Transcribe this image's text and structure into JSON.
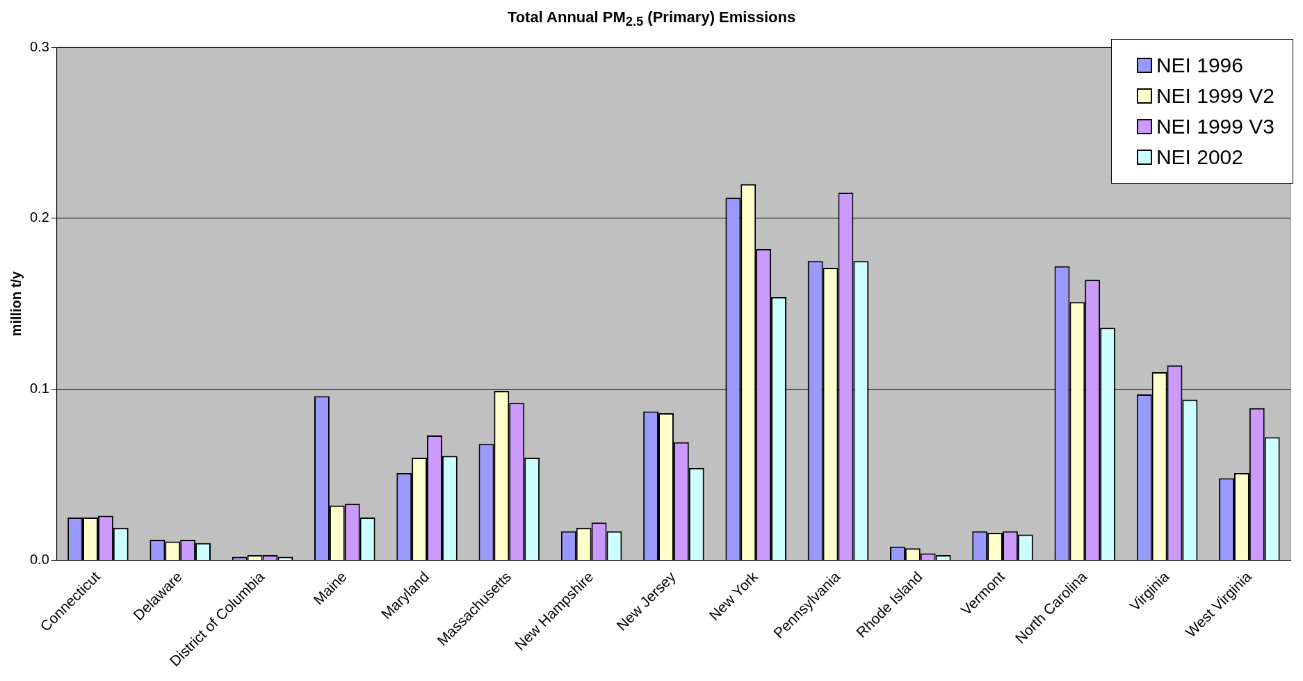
{
  "chart_data": {
    "type": "bar",
    "title": "Total Annual PM$_{2.5}$ (Primary) Emissions",
    "ylabel": "million t/y",
    "categories": [
      "Connecticut",
      "Delaware",
      "District of Columbia",
      "Maine",
      "Maryland",
      "Massachusetts",
      "New Hampshire",
      "New Jersey",
      "New York",
      "Pennsylvania",
      "Rhode Island",
      "Vermont",
      "North Carolina",
      "Virginia",
      "West Virginia"
    ],
    "series": [
      {
        "name": "NEI 1996",
        "color": "#9999ff",
        "values": [
          0.025,
          0.012,
          0.002,
          0.096,
          0.051,
          0.068,
          0.017,
          0.087,
          0.212,
          0.175,
          0.008,
          0.017,
          0.172,
          0.097,
          0.048
        ]
      },
      {
        "name": "NEI 1999 V2",
        "color": "#ffffcc",
        "values": [
          0.025,
          0.011,
          0.003,
          0.032,
          0.06,
          0.099,
          0.019,
          0.086,
          0.22,
          0.171,
          0.007,
          0.016,
          0.151,
          0.11,
          0.051
        ]
      },
      {
        "name": "NEI 1999 V3",
        "color": "#cc99ff",
        "values": [
          0.026,
          0.012,
          0.003,
          0.033,
          0.073,
          0.092,
          0.022,
          0.069,
          0.182,
          0.215,
          0.004,
          0.017,
          0.164,
          0.114,
          0.089
        ]
      },
      {
        "name": "NEI 2002",
        "color": "#ccffff",
        "values": [
          0.019,
          0.01,
          0.002,
          0.025,
          0.061,
          0.06,
          0.017,
          0.054,
          0.154,
          0.175,
          0.003,
          0.015,
          0.136,
          0.094,
          0.072
        ]
      }
    ],
    "ylim": [
      0,
      0.3
    ],
    "yticks": [
      {
        "value": 0,
        "label": "0.0"
      },
      {
        "value": 0.1,
        "label": "0.1"
      },
      {
        "value": 0.2,
        "label": "0.2"
      },
      {
        "value": 0.3,
        "label": "0.3"
      }
    ],
    "grid": "y",
    "legend": "top right"
  }
}
